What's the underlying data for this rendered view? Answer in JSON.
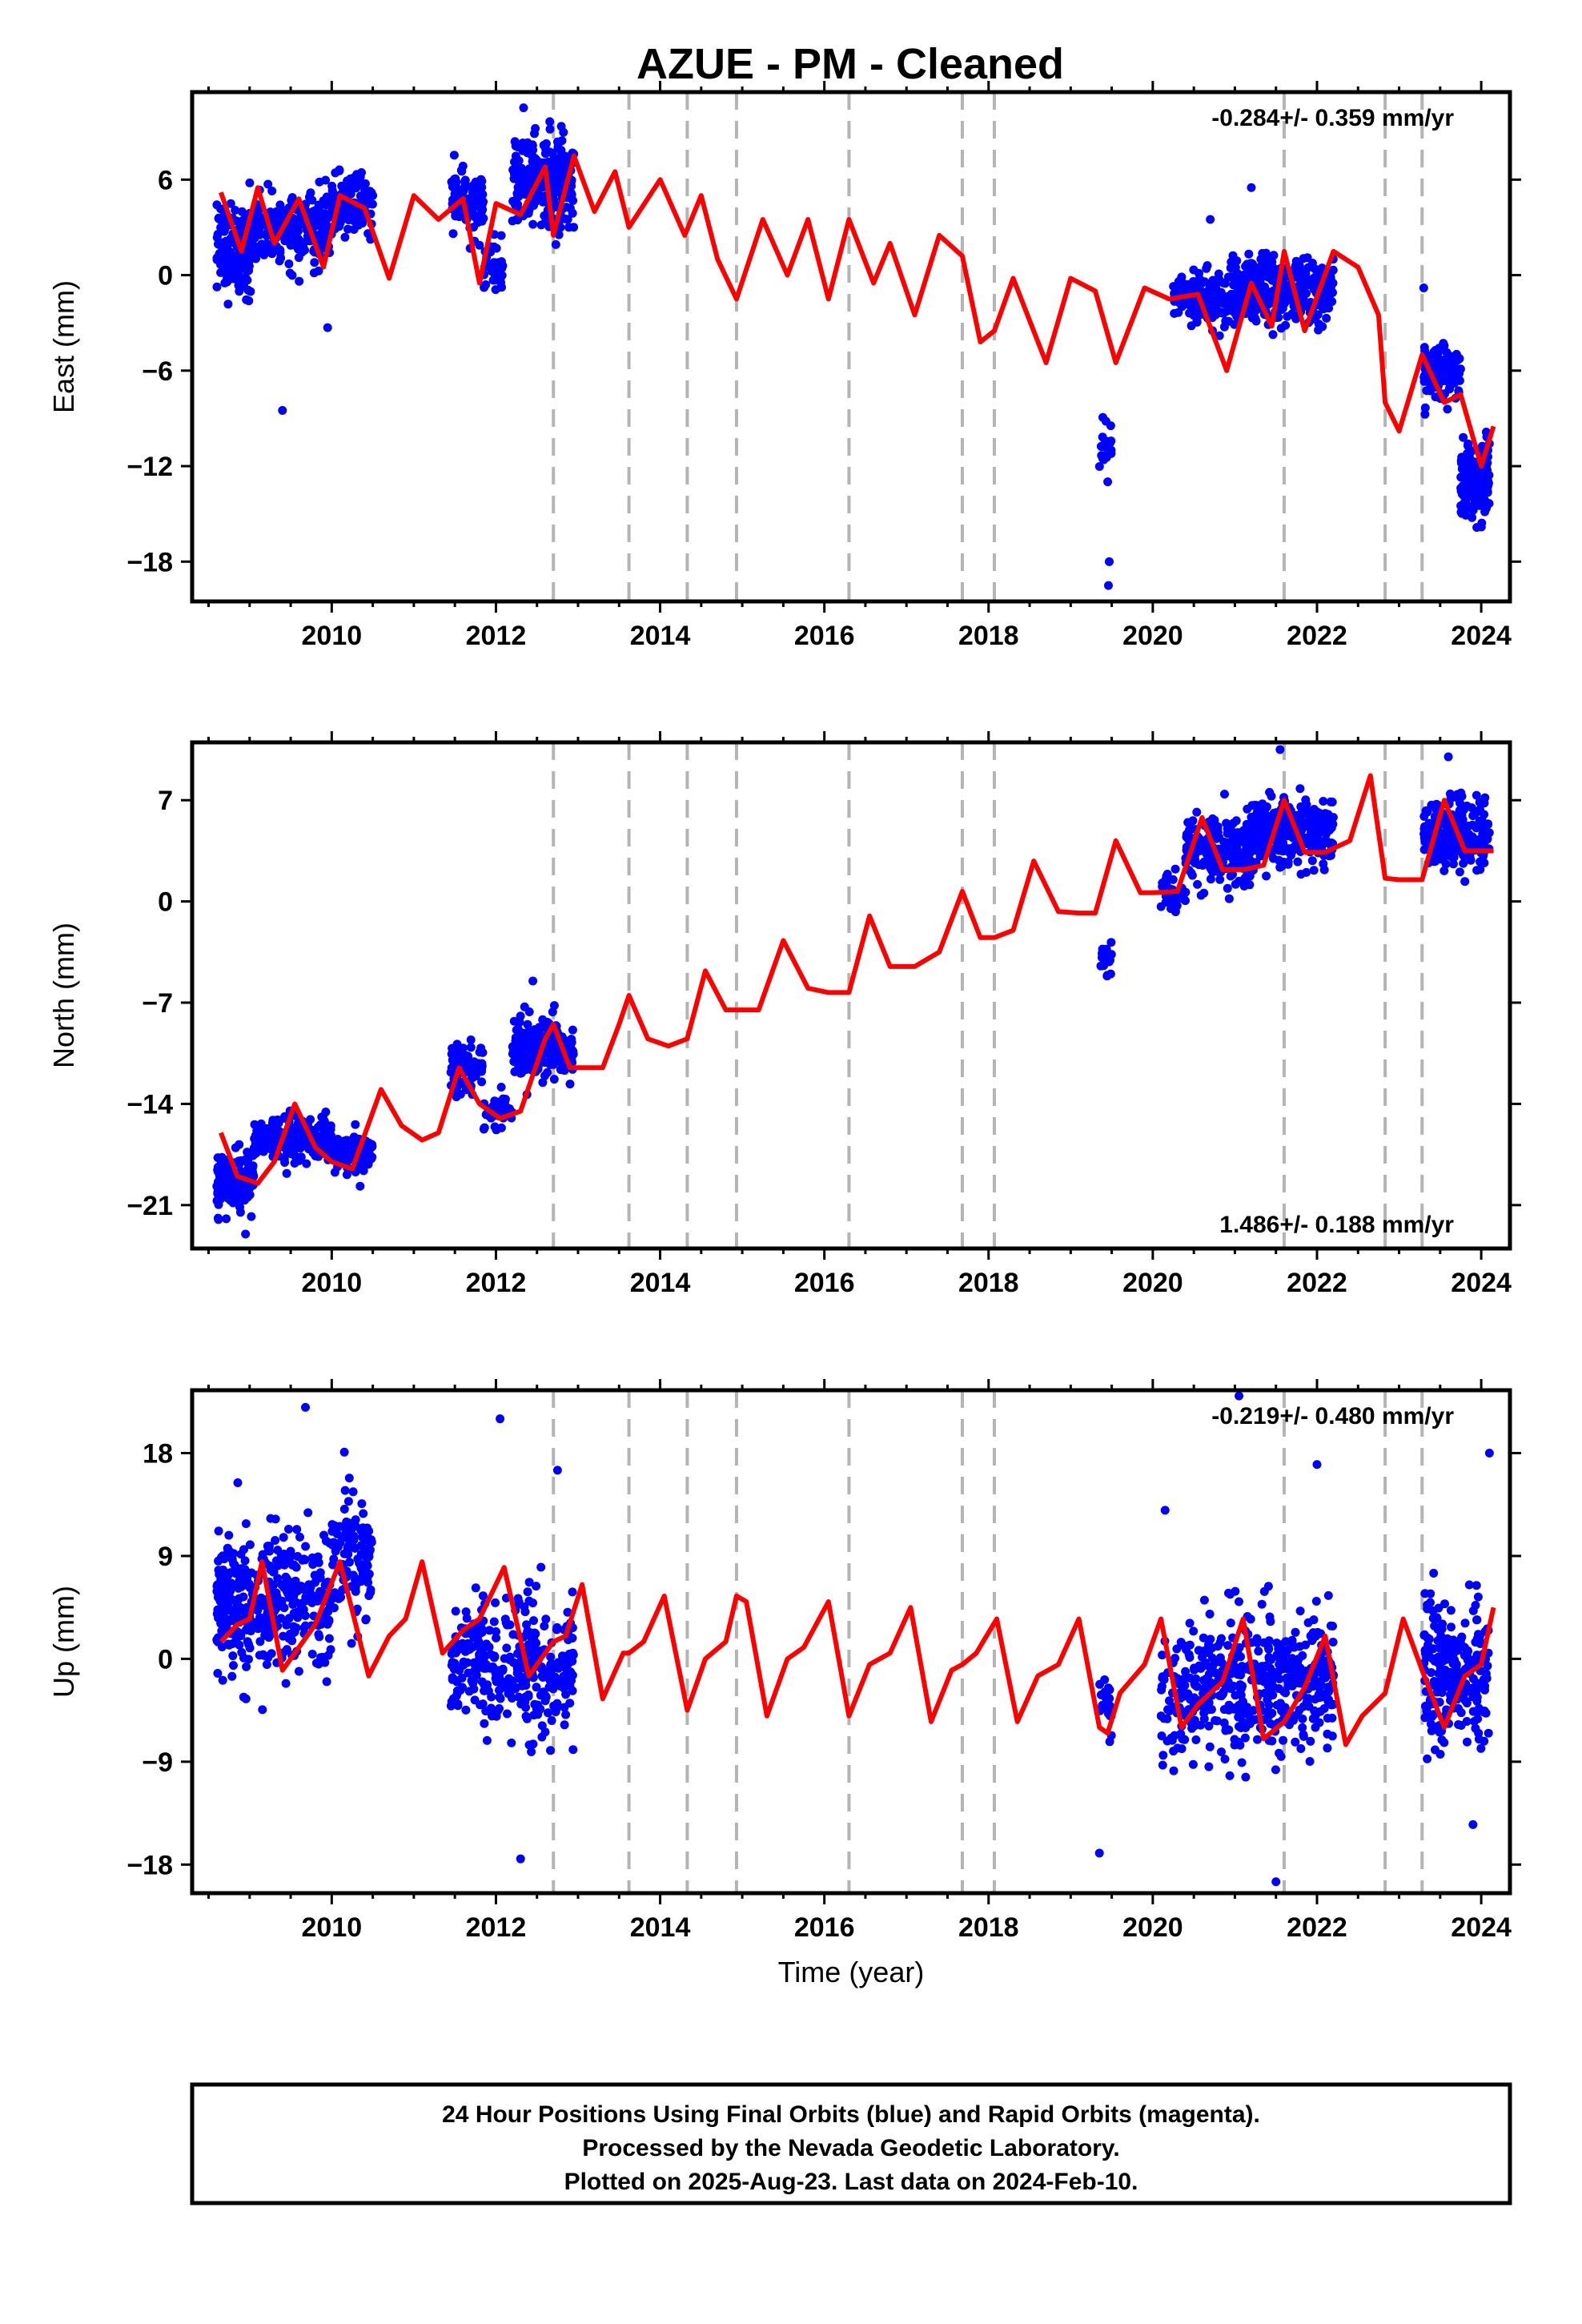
{
  "figure": {
    "title": "AZUE  - PM - Cleaned",
    "footer_lines": [
      "24 Hour Positions Using Final Orbits (blue) and Rapid Orbits (magenta).",
      "Processed by the Nevada Geodetic Laboratory.",
      "Plotted on 2025-Aug-23. Last data on 2024-Feb-10."
    ]
  },
  "colors": {
    "data_points": "#0000ff",
    "model_line": "#ff0000",
    "event_lines": "#b4b4b4",
    "frame": "#000000"
  },
  "chart_data": [
    {
      "type": "scatter",
      "component": "East",
      "ylabel": "East (mm)",
      "xlabel": "",
      "xlim": [
        2008.3,
        2024.35
      ],
      "ylim": [
        -20.5,
        11.5
      ],
      "xticks": [
        2010,
        2012,
        2014,
        2016,
        2018,
        2020,
        2022,
        2024
      ],
      "yticks": [
        -18,
        -12,
        -6,
        0,
        6
      ],
      "rate_text": "-0.284+/- 0.359 mm/yr",
      "rate_position": "top-right",
      "event_lines_x": [
        2012.7,
        2013.62,
        2014.33,
        2014.93,
        2016.3,
        2017.68,
        2018.07,
        2021.6,
        2022.83,
        2023.28
      ],
      "model": {
        "name": "model",
        "x": [
          2008.65,
          2008.9,
          2009.1,
          2009.3,
          2009.6,
          2009.9,
          2010.1,
          2010.4,
          2010.7,
          2011.0,
          2011.3,
          2011.6,
          2011.8,
          2012.0,
          2012.3,
          2012.6,
          2012.7,
          2012.95,
          2013.2,
          2013.45,
          2013.62,
          2014.0,
          2014.3,
          2014.5,
          2014.7,
          2014.93,
          2015.25,
          2015.55,
          2015.8,
          2016.05,
          2016.3,
          2016.6,
          2016.8,
          2017.1,
          2017.4,
          2017.68,
          2017.9,
          2018.07,
          2018.3,
          2018.7,
          2019.0,
          2019.3,
          2019.55,
          2019.9,
          2020.2,
          2020.55,
          2020.9,
          2021.2,
          2021.45,
          2021.6,
          2021.85,
          2022.2,
          2022.5,
          2022.75,
          2022.83,
          2023.0,
          2023.28,
          2023.55,
          2023.75,
          2024.0,
          2024.15
        ],
        "y": [
          5.2,
          1.5,
          5.5,
          2.0,
          4.8,
          0.5,
          5.0,
          4.2,
          -0.2,
          5.0,
          3.5,
          4.8,
          -0.5,
          4.5,
          3.8,
          6.8,
          2.5,
          7.5,
          4.0,
          6.5,
          3.0,
          6.0,
          2.5,
          5.0,
          1.0,
          -1.5,
          3.5,
          0.0,
          3.5,
          -1.5,
          3.5,
          -0.5,
          2.0,
          -2.5,
          2.5,
          1.2,
          -4.2,
          -3.5,
          -0.2,
          -5.5,
          -0.2,
          -1.0,
          -5.5,
          -0.8,
          -1.5,
          -1.2,
          -6.0,
          -0.5,
          -3.2,
          1.5,
          -3.5,
          1.5,
          0.5,
          -2.5,
          -8.0,
          -9.8,
          -5.0,
          -8.0,
          -7.5,
          -12.0,
          -9.5
        ]
      },
      "scatter_clusters": [
        {
          "x_range": [
            2008.6,
            2009.0
          ],
          "y_center": 1.5,
          "y_spread": 2.5,
          "count": 140
        },
        {
          "x_range": [
            2009.0,
            2010.0
          ],
          "y_center": 2.8,
          "y_spread": 2.0,
          "count": 240
        },
        {
          "x_range": [
            2010.0,
            2010.5
          ],
          "y_center": 4.5,
          "y_spread": 1.6,
          "count": 120
        },
        {
          "x_range": [
            2011.45,
            2011.85
          ],
          "y_center": 4.5,
          "y_spread": 1.8,
          "count": 90
        },
        {
          "x_range": [
            2011.85,
            2012.1
          ],
          "y_center": 0.5,
          "y_spread": 1.5,
          "count": 40
        },
        {
          "x_range": [
            2012.2,
            2012.95
          ],
          "y_center": 6.0,
          "y_spread": 2.6,
          "count": 260
        },
        {
          "x_range": [
            2019.35,
            2019.5
          ],
          "y_center": -11.0,
          "y_spread": 2.0,
          "count": 22
        },
        {
          "x_range": [
            2020.25,
            2020.9
          ],
          "y_center": -1.5,
          "y_spread": 1.6,
          "count": 120
        },
        {
          "x_range": [
            2020.9,
            2021.6
          ],
          "y_center": -1.0,
          "y_spread": 1.9,
          "count": 210
        },
        {
          "x_range": [
            2021.6,
            2022.2
          ],
          "y_center": -1.0,
          "y_spread": 1.7,
          "count": 150
        },
        {
          "x_range": [
            2023.3,
            2023.75
          ],
          "y_center": -6.0,
          "y_spread": 1.5,
          "count": 120
        },
        {
          "x_range": [
            2023.75,
            2024.1
          ],
          "y_center": -13.0,
          "y_spread": 2.2,
          "count": 150
        }
      ],
      "scatter_outliers": [
        {
          "x": 2009.4,
          "y": -8.5
        },
        {
          "x": 2009.95,
          "y": -3.3
        },
        {
          "x": 2019.47,
          "y": -18.0
        },
        {
          "x": 2019.46,
          "y": -19.5
        },
        {
          "x": 2020.7,
          "y": 3.5
        },
        {
          "x": 2021.2,
          "y": 5.5
        },
        {
          "x": 2023.3,
          "y": -0.8
        }
      ]
    },
    {
      "type": "scatter",
      "component": "North",
      "ylabel": "North (mm)",
      "xlabel": "",
      "xlim": [
        2008.3,
        2024.35
      ],
      "ylim": [
        -24,
        11
      ],
      "xticks": [
        2010,
        2012,
        2014,
        2016,
        2018,
        2020,
        2022,
        2024
      ],
      "yticks": [
        -21,
        -14,
        -7,
        0,
        7
      ],
      "rate_text": "1.486+/- 0.188 mm/yr",
      "rate_position": "bottom-right",
      "event_lines_x": [
        2012.7,
        2013.62,
        2014.33,
        2014.93,
        2016.3,
        2017.68,
        2018.07,
        2021.6,
        2022.83,
        2023.28
      ],
      "model": {
        "name": "model",
        "x": [
          2008.65,
          2008.85,
          2009.1,
          2009.3,
          2009.55,
          2009.8,
          2010.0,
          2010.25,
          2010.6,
          2010.85,
          2011.1,
          2011.3,
          2011.55,
          2011.8,
          2012.05,
          2012.3,
          2012.6,
          2012.7,
          2012.9,
          2013.1,
          2013.3,
          2013.5,
          2013.62,
          2013.85,
          2014.1,
          2014.33,
          2014.55,
          2014.8,
          2014.93,
          2015.2,
          2015.5,
          2015.8,
          2016.05,
          2016.3,
          2016.55,
          2016.8,
          2017.1,
          2017.4,
          2017.68,
          2017.9,
          2018.07,
          2018.3,
          2018.55,
          2018.85,
          2019.1,
          2019.3,
          2019.55,
          2019.85,
          2020.0,
          2020.3,
          2020.6,
          2020.85,
          2021.1,
          2021.35,
          2021.6,
          2021.85,
          2022.1,
          2022.4,
          2022.65,
          2022.83,
          2023.0,
          2023.28,
          2023.55,
          2023.8,
          2024.0,
          2024.15
        ],
        "y": [
          -16.0,
          -19.0,
          -19.5,
          -18.0,
          -14.0,
          -17.0,
          -18.0,
          -18.5,
          -13.0,
          -15.5,
          -16.5,
          -16.0,
          -11.5,
          -14.0,
          -15.0,
          -14.5,
          -9.5,
          -8.5,
          -11.5,
          -11.5,
          -11.5,
          -8.5,
          -6.5,
          -9.5,
          -10.0,
          -9.5,
          -4.8,
          -7.5,
          -7.5,
          -7.5,
          -2.7,
          -6.0,
          -6.3,
          -6.3,
          -1.0,
          -4.5,
          -4.5,
          -3.5,
          0.7,
          -2.5,
          -2.5,
          -2.0,
          2.8,
          -0.7,
          -0.8,
          -0.8,
          4.2,
          0.6,
          0.6,
          0.7,
          5.8,
          2.2,
          2.2,
          2.5,
          7.0,
          3.4,
          3.4,
          4.2,
          8.7,
          1.6,
          1.5,
          1.5,
          7.0,
          3.5,
          3.5,
          3.5
        ]
      },
      "scatter_clusters": [
        {
          "x_range": [
            2008.6,
            2009.05
          ],
          "y_center": -19.5,
          "y_spread": 1.8,
          "count": 170
        },
        {
          "x_range": [
            2009.05,
            2010.0
          ],
          "y_center": -16.5,
          "y_spread": 1.4,
          "count": 240
        },
        {
          "x_range": [
            2010.0,
            2010.5
          ],
          "y_center": -17.5,
          "y_spread": 1.2,
          "count": 110
        },
        {
          "x_range": [
            2011.45,
            2011.85
          ],
          "y_center": -11.5,
          "y_spread": 1.4,
          "count": 90
        },
        {
          "x_range": [
            2011.85,
            2012.2
          ],
          "y_center": -14.5,
          "y_spread": 1.2,
          "count": 50
        },
        {
          "x_range": [
            2012.2,
            2012.95
          ],
          "y_center": -10.0,
          "y_spread": 1.8,
          "count": 230
        },
        {
          "x_range": [
            2019.35,
            2019.5
          ],
          "y_center": -4.0,
          "y_spread": 1.4,
          "count": 20
        },
        {
          "x_range": [
            2020.1,
            2020.4
          ],
          "y_center": 0.5,
          "y_spread": 1.2,
          "count": 40
        },
        {
          "x_range": [
            2020.4,
            2021.2
          ],
          "y_center": 3.5,
          "y_spread": 2.0,
          "count": 210
        },
        {
          "x_range": [
            2021.2,
            2022.2
          ],
          "y_center": 4.8,
          "y_spread": 2.2,
          "count": 260
        },
        {
          "x_range": [
            2023.3,
            2024.1
          ],
          "y_center": 4.5,
          "y_spread": 2.3,
          "count": 230
        }
      ],
      "scatter_outliers": [
        {
          "x": 2008.62,
          "y": -22.0
        },
        {
          "x": 2008.95,
          "y": -23.0
        },
        {
          "x": 2012.45,
          "y": -5.5
        },
        {
          "x": 2021.55,
          "y": 10.5
        },
        {
          "x": 2023.6,
          "y": 10.0
        }
      ]
    },
    {
      "type": "scatter",
      "component": "Up",
      "ylabel": "Up (mm)",
      "xlabel": "Time (year)",
      "xlim": [
        2008.3,
        2024.35
      ],
      "ylim": [
        -20.5,
        23.5
      ],
      "xticks": [
        2010,
        2012,
        2014,
        2016,
        2018,
        2020,
        2022,
        2024
      ],
      "yticks": [
        -18,
        -9,
        0,
        9,
        18
      ],
      "rate_text": "-0.219+/- 0.480 mm/yr",
      "rate_position": "top-right",
      "event_lines_x": [
        2012.7,
        2013.62,
        2014.33,
        2014.93,
        2016.3,
        2017.68,
        2018.07,
        2021.6,
        2022.83,
        2023.28
      ],
      "model": {
        "name": "model",
        "x": [
          2008.65,
          2008.85,
          2009.0,
          2009.15,
          2009.4,
          2009.6,
          2009.8,
          2010.1,
          2010.45,
          2010.7,
          2010.9,
          2011.1,
          2011.35,
          2011.6,
          2011.8,
          2012.1,
          2012.4,
          2012.6,
          2012.7,
          2012.85,
          2013.05,
          2013.3,
          2013.55,
          2013.62,
          2013.8,
          2014.05,
          2014.33,
          2014.55,
          2014.8,
          2014.93,
          2015.05,
          2015.3,
          2015.55,
          2015.75,
          2016.05,
          2016.3,
          2016.55,
          2016.8,
          2017.05,
          2017.3,
          2017.55,
          2017.68,
          2017.85,
          2018.1,
          2018.35,
          2018.6,
          2018.85,
          2019.1,
          2019.35,
          2019.45,
          2019.6,
          2019.9,
          2020.1,
          2020.35,
          2020.55,
          2020.85,
          2021.1,
          2021.35,
          2021.6,
          2021.85,
          2022.1,
          2022.35,
          2022.55,
          2022.83,
          2023.05,
          2023.28,
          2023.55,
          2023.8,
          2024.0,
          2024.15
        ],
        "y": [
          1.5,
          3.0,
          3.5,
          8.5,
          -1.0,
          1.0,
          3.0,
          8.5,
          -1.5,
          2.0,
          3.5,
          8.5,
          0.5,
          2.5,
          3.5,
          8.0,
          -1.5,
          0.5,
          1.5,
          2.0,
          6.5,
          -3.5,
          0.5,
          0.5,
          1.5,
          5.5,
          -4.5,
          0.0,
          1.5,
          5.5,
          5.0,
          -5.0,
          0.0,
          1.0,
          5.0,
          -5.0,
          -0.5,
          0.5,
          4.5,
          -5.5,
          -1.0,
          -0.5,
          0.5,
          3.5,
          -5.5,
          -1.5,
          -0.5,
          3.5,
          -6.0,
          -6.5,
          -3.0,
          -0.5,
          3.5,
          -6.0,
          -4.0,
          -2.0,
          3.5,
          -7.0,
          -5.5,
          -2.5,
          2.0,
          -7.5,
          -5.0,
          -3.0,
          3.5,
          -1.0,
          -6.0,
          -1.5,
          -0.5,
          4.5
        ]
      },
      "scatter_clusters": [
        {
          "x_range": [
            2008.6,
            2009.0
          ],
          "y_center": 5.0,
          "y_spread": 5.0,
          "count": 160
        },
        {
          "x_range": [
            2009.0,
            2010.0
          ],
          "y_center": 5.0,
          "y_spread": 5.5,
          "count": 240
        },
        {
          "x_range": [
            2010.0,
            2010.5
          ],
          "y_center": 9.0,
          "y_spread": 5.0,
          "count": 110
        },
        {
          "x_range": [
            2011.45,
            2011.85
          ],
          "y_center": 0.0,
          "y_spread": 5.0,
          "count": 100
        },
        {
          "x_range": [
            2011.85,
            2012.95
          ],
          "y_center": -1.0,
          "y_spread": 5.5,
          "count": 260
        },
        {
          "x_range": [
            2019.35,
            2019.5
          ],
          "y_center": -4.0,
          "y_spread": 2.5,
          "count": 20
        },
        {
          "x_range": [
            2020.1,
            2020.6
          ],
          "y_center": -4.0,
          "y_spread": 5.0,
          "count": 90
        },
        {
          "x_range": [
            2020.6,
            2021.6
          ],
          "y_center": -2.0,
          "y_spread": 5.5,
          "count": 240
        },
        {
          "x_range": [
            2021.6,
            2022.2
          ],
          "y_center": -2.0,
          "y_spread": 5.0,
          "count": 160
        },
        {
          "x_range": [
            2023.3,
            2024.1
          ],
          "y_center": -1.0,
          "y_spread": 5.5,
          "count": 240
        }
      ],
      "scatter_outliers": [
        {
          "x": 2009.68,
          "y": 22.0
        },
        {
          "x": 2012.05,
          "y": 21.0
        },
        {
          "x": 2012.3,
          "y": -17.5
        },
        {
          "x": 2012.75,
          "y": 16.5
        },
        {
          "x": 2019.35,
          "y": -17.0
        },
        {
          "x": 2020.15,
          "y": 13.0
        },
        {
          "x": 2021.05,
          "y": 23.0
        },
        {
          "x": 2021.5,
          "y": -19.5
        },
        {
          "x": 2022.0,
          "y": 17.0
        },
        {
          "x": 2023.9,
          "y": -14.5
        },
        {
          "x": 2024.1,
          "y": 18.0
        }
      ]
    }
  ]
}
